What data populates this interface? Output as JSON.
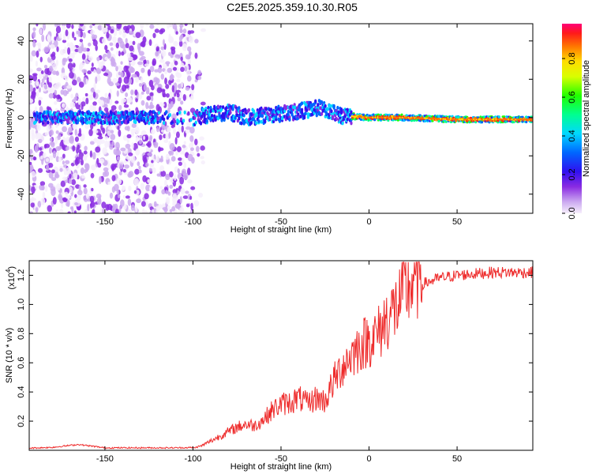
{
  "title": "C2E5.2025.359.10.30.R05",
  "colors": {
    "snr_line": "#ee2a2a",
    "axis": "#000000",
    "background": "#ffffff"
  },
  "chart_data": [
    {
      "type": "heatmap",
      "xlabel": "Height of straight line (km)",
      "ylabel": "Frequency (Hz)",
      "xlim": [
        -193,
        93
      ],
      "ylim": [
        -50,
        49
      ],
      "xticks": [
        -150,
        -100,
        -50,
        0,
        50
      ],
      "yticks": [
        40,
        20,
        0,
        -20,
        -40
      ],
      "colorbar": {
        "label": "Normalized spectral amplitude",
        "range": [
          0,
          0.98
        ],
        "ticks": [
          0.0,
          0.2,
          0.4,
          0.6,
          0.8
        ],
        "tick_labels": [
          "0.0",
          "0.2",
          "0.4",
          "0.6",
          "0.8"
        ]
      },
      "band_center_hz": [
        {
          "h": -190,
          "f": 0
        },
        {
          "h": -100,
          "f": 0
        },
        {
          "h": -80,
          "f": 3
        },
        {
          "h": -70,
          "f": 0
        },
        {
          "h": -50,
          "f": 2
        },
        {
          "h": -35,
          "f": 4
        },
        {
          "h": -28,
          "f": 5
        },
        {
          "h": -15,
          "f": 1
        },
        {
          "h": 0,
          "f": 0
        },
        {
          "h": 20,
          "f": 0
        },
        {
          "h": 50,
          "f": -1
        },
        {
          "h": 93,
          "f": -1
        }
      ]
    },
    {
      "type": "line",
      "xlabel": "Height of straight line (km)",
      "ylabel": "SNR (10 * v/v)",
      "scale_label": "(x10",
      "scale_exponent": "4",
      "xlim": [
        -193,
        93
      ],
      "ylim": [
        0,
        1.3
      ],
      "xticks": [
        -150,
        -100,
        -50,
        0,
        50
      ],
      "yticks": [
        0.2,
        0.4,
        0.6,
        0.8,
        1.0,
        1.2
      ],
      "ytick_labels": [
        "0.2",
        "0.4",
        "0.6",
        "0.8",
        "1.0",
        "1.2"
      ],
      "series": [
        {
          "name": "SNR",
          "x": [
            -193,
            -180,
            -165,
            -150,
            -130,
            -110,
            -100,
            -95,
            -90,
            -85,
            -80,
            -75,
            -70,
            -65,
            -60,
            -55,
            -50,
            -45,
            -40,
            -35,
            -30,
            -25,
            -20,
            -15,
            -10,
            -5,
            0,
            5,
            10,
            15,
            20,
            25,
            30,
            35,
            40,
            50,
            60,
            70,
            80,
            93
          ],
          "values": [
            0.01,
            0.015,
            0.035,
            0.012,
            0.012,
            0.012,
            0.014,
            0.03,
            0.06,
            0.09,
            0.12,
            0.15,
            0.17,
            0.16,
            0.2,
            0.26,
            0.3,
            0.31,
            0.34,
            0.3,
            0.34,
            0.32,
            0.45,
            0.55,
            0.62,
            0.68,
            0.72,
            0.75,
            0.86,
            0.92,
            1.02,
            1.1,
            1.14,
            1.16,
            1.18,
            1.2,
            1.21,
            1.22,
            1.22,
            1.22
          ]
        }
      ]
    }
  ]
}
